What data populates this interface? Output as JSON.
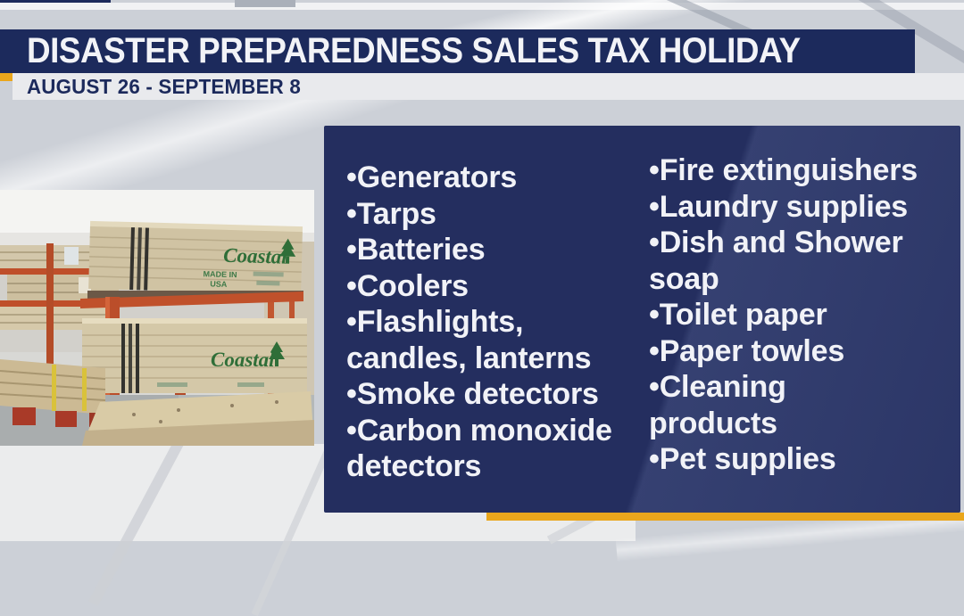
{
  "header": {
    "title": "DISASTER PREPAREDNESS SALES TAX HOLIDAY",
    "date_range": "AUGUST 26 - SEPTEMBER 8"
  },
  "panel": {
    "columns": [
      {
        "items": [
          {
            "text": "Generators",
            "lines": [
              "•Generators"
            ]
          },
          {
            "text": "Tarps",
            "lines": [
              "•Tarps"
            ]
          },
          {
            "text": "Batteries",
            "lines": [
              "•Batteries"
            ]
          },
          {
            "text": "Coolers",
            "lines": [
              "•Coolers"
            ]
          },
          {
            "text": "Flashlights, candles, lanterns",
            "lines": [
              "•Flashlights,",
              "candles, lanterns"
            ]
          },
          {
            "text": "Smoke detectors",
            "lines": [
              "•Smoke detectors"
            ]
          },
          {
            "text": "Carbon monoxide detectors",
            "lines": [
              "•Carbon monoxide",
              "detectors"
            ]
          }
        ]
      },
      {
        "items": [
          {
            "text": "Fire extinguishers",
            "lines": [
              "•Fire extinguishers"
            ]
          },
          {
            "text": "Laundry supplies",
            "lines": [
              "•Laundry supplies"
            ]
          },
          {
            "text": "Dish and Shower soap",
            "lines": [
              "•Dish and Shower",
              "soap"
            ]
          },
          {
            "text": "Toilet paper",
            "lines": [
              "•Toilet paper"
            ]
          },
          {
            "text": "Paper towles",
            "lines": [
              "•Paper towles"
            ]
          },
          {
            "text": "Cleaning products",
            "lines": [
              "•Cleaning",
              "products"
            ]
          },
          {
            "text": "Pet supplies",
            "lines": [
              "•Pet supplies"
            ]
          }
        ]
      }
    ]
  },
  "photo": {
    "description": "lumber warehouse with stacked Coastal plywood bundles on orange racks",
    "brand_label_top": "Coastal",
    "brand_label_bottom": "Coastal",
    "made_in_label": "MADE IN",
    "usa_label": "USA"
  },
  "colors": {
    "navy": "#1c2a5c",
    "panel_blue": "#242e5f",
    "gold": "#eaa61c",
    "date_bar_bg": "#e9eaed",
    "list_text": "#f1f2f7",
    "background_gray": "#ccd0d7"
  }
}
